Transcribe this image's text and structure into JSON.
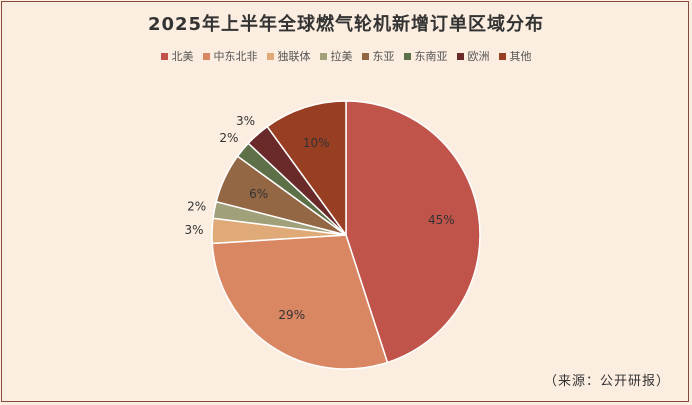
{
  "chart_data": {
    "type": "pie",
    "title": "2025年上半年全球燃气轮机新增订单区域分布",
    "unit": "%",
    "slices": [
      {
        "label": "北美",
        "value": 45,
        "color": "#c0544a"
      },
      {
        "label": "中东北非",
        "value": 29,
        "color": "#d98662"
      },
      {
        "label": "独联体",
        "value": 3,
        "color": "#e0aa78"
      },
      {
        "label": "拉美",
        "value": 2,
        "color": "#a0a07a"
      },
      {
        "label": "东亚",
        "value": 6,
        "color": "#936644"
      },
      {
        "label": "东南亚",
        "value": 2,
        "color": "#5e7048"
      },
      {
        "label": "欧洲",
        "value": 3,
        "color": "#6b2a2a"
      },
      {
        "label": "其他",
        "value": 10,
        "color": "#983e22"
      }
    ],
    "data_labels": [
      "45%",
      "29%",
      "3%",
      "2%",
      "6%",
      "2%",
      "3%",
      "10%"
    ],
    "legend_position": "top",
    "start_angle": "12 o'clock, clockwise"
  },
  "source_note": "（来源：公开研报）"
}
